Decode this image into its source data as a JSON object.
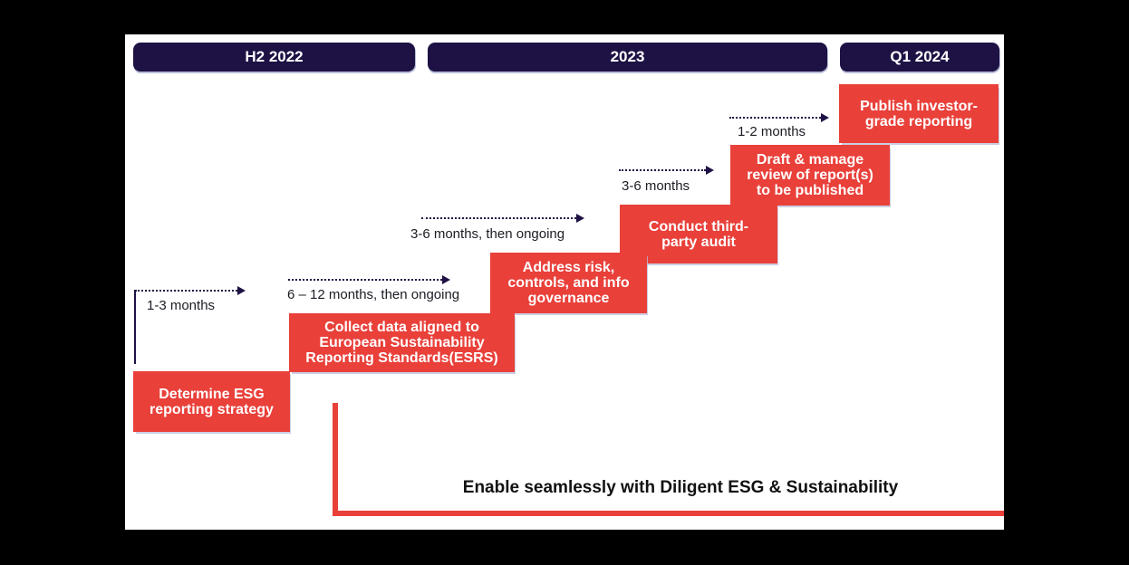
{
  "diagram": {
    "headers": [
      {
        "label": "H2 2022"
      },
      {
        "label": "2023"
      },
      {
        "label": "Q1 2024"
      }
    ],
    "steps": [
      {
        "label": "Determine ESG reporting strategy",
        "duration": "1-3 months"
      },
      {
        "label": "Collect data aligned to European Sustainability Reporting Standards(ESRS)",
        "duration": "6 – 12 months, then ongoing"
      },
      {
        "label": "Address risk, controls, and info governance",
        "duration": "3-6 months, then ongoing"
      },
      {
        "label": "Conduct third-party audit",
        "duration": "3-6 months"
      },
      {
        "label": "Draft & manage review of report(s) to be published",
        "duration": "1-2 months"
      },
      {
        "label": "Publish investor-grade reporting"
      }
    ],
    "footer": {
      "label": "Enable seamlessly with Diligent ESG & Sustainability"
    },
    "colors": {
      "navy": "#1e1245",
      "red": "#e9403a",
      "bar_shadow": "#b9bdd8"
    }
  }
}
